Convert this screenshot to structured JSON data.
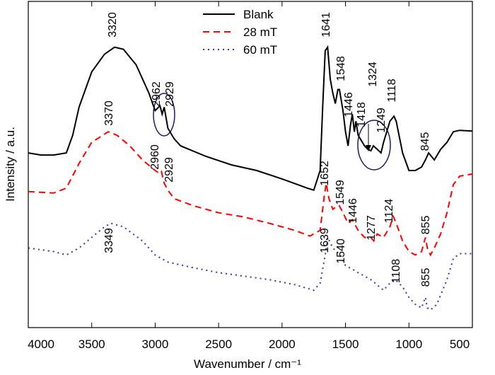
{
  "chart_data": {
    "type": "line",
    "xlabel": "Wavenumber / cm⁻¹",
    "ylabel": "Intensity / a.u.",
    "xlim": [
      4000,
      500
    ],
    "xticks": [
      4000,
      3500,
      3000,
      2500,
      2000,
      1500,
      1000,
      500
    ],
    "ylim": [
      0,
      463
    ],
    "legend": "top",
    "series": [
      {
        "name": "Blank",
        "color": "#000000",
        "style": "solid",
        "x": [
          4000,
          3900,
          3800,
          3700,
          3650,
          3600,
          3500,
          3400,
          3320,
          3250,
          3150,
          3050,
          3000,
          2962,
          2945,
          2929,
          2900,
          2850,
          2800,
          2600,
          2400,
          2200,
          2000,
          1800,
          1750,
          1700,
          1680,
          1660,
          1641,
          1620,
          1600,
          1580,
          1560,
          1548,
          1520,
          1500,
          1480,
          1460,
          1446,
          1430,
          1418,
          1400,
          1350,
          1324,
          1300,
          1280,
          1249,
          1220,
          1200,
          1150,
          1118,
          1100,
          1050,
          1000,
          950,
          900,
          870,
          845,
          800,
          750,
          700,
          650,
          600,
          500
        ],
        "values": [
          248,
          245,
          245,
          248,
          273,
          313,
          363,
          388,
          398,
          395,
          373,
          333,
          308,
          315,
          303,
          313,
          283,
          268,
          258,
          243,
          231,
          223,
          211,
          198,
          195,
          223,
          313,
          393,
          398,
          353,
          333,
          318,
          338,
          338,
          308,
          278,
          258,
          288,
          303,
          278,
          293,
          273,
          258,
          253,
          251,
          258,
          253,
          248,
          263,
          293,
          300,
          293,
          248,
          223,
          223,
          228,
          238,
          248,
          238,
          253,
          263,
          278,
          280,
          279
        ],
        "peaks": [
          3320,
          2962,
          2929,
          1641,
          1548,
          1446,
          1418,
          1324,
          1249,
          1118,
          845
        ]
      },
      {
        "name": "28 mT",
        "color": "#ff0000",
        "style": "dashed",
        "x": [
          4000,
          3800,
          3700,
          3600,
          3500,
          3370,
          3300,
          3200,
          3100,
          3000,
          2960,
          2950,
          2929,
          2900,
          2850,
          2700,
          2500,
          2300,
          2100,
          1900,
          1780,
          1700,
          1670,
          1652,
          1630,
          1600,
          1560,
          1549,
          1520,
          1480,
          1446,
          1400,
          1350,
          1300,
          1277,
          1250,
          1200,
          1150,
          1124,
          1100,
          1050,
          1000,
          950,
          900,
          870,
          855,
          830,
          800,
          750,
          700,
          650,
          600,
          500
        ],
        "values": [
          193,
          191,
          198,
          233,
          263,
          278,
          273,
          258,
          238,
          223,
          218,
          221,
          205,
          195,
          183,
          173,
          163,
          157,
          148,
          138,
          130,
          138,
          183,
          205,
          183,
          168,
          173,
          173,
          163,
          148,
          153,
          138,
          128,
          128,
          123,
          133,
          128,
          143,
          158,
          148,
          123,
          108,
          103,
          108,
          128,
          113,
          103,
          113,
          133,
          163,
          203,
          215,
          218
        ],
        "peaks": [
          3370,
          2960,
          2929,
          1652,
          1549,
          1446,
          1277,
          1124,
          855
        ]
      },
      {
        "name": "60 mT",
        "color": "#3333bb",
        "style": "dotted",
        "x": [
          4000,
          3800,
          3700,
          3600,
          3500,
          3400,
          3349,
          3250,
          3100,
          3000,
          2900,
          2700,
          2500,
          2300,
          2100,
          1900,
          1750,
          1700,
          1660,
          1639,
          1600,
          1540,
          1500,
          1446,
          1400,
          1300,
          1200,
          1150,
          1108,
          1050,
          1000,
          950,
          900,
          870,
          855,
          830,
          780,
          700,
          650,
          600,
          500
        ],
        "values": [
          113,
          108,
          103,
          113,
          128,
          143,
          148,
          143,
          123,
          103,
          93,
          85,
          78,
          73,
          68,
          61,
          53,
          63,
          103,
          128,
          113,
          103,
          88,
          83,
          78,
          68,
          53,
          63,
          68,
          58,
          43,
          33,
          28,
          43,
          28,
          25,
          33,
          68,
          98,
          105,
          105
        ],
        "peaks": [
          3349,
          1639,
          1540,
          1108,
          855
        ]
      }
    ]
  }
}
